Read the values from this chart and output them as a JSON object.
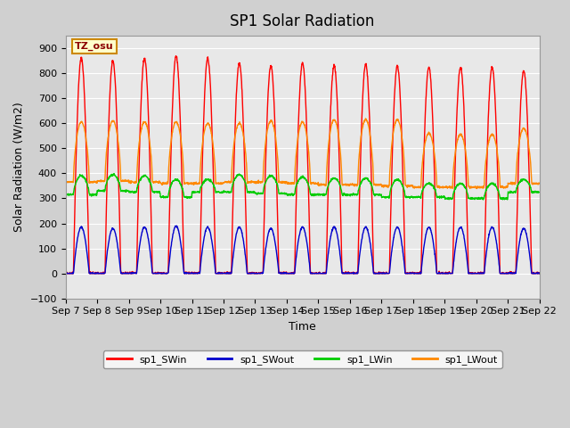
{
  "title": "SP1 Solar Radiation",
  "xlabel": "Time",
  "ylabel": "Solar Radiation (W/m2)",
  "ylim": [
    -100,
    950
  ],
  "yticks": [
    -100,
    0,
    100,
    200,
    300,
    400,
    500,
    600,
    700,
    800,
    900
  ],
  "x_tick_labels": [
    "Sep 7",
    "Sep 8",
    "Sep 9",
    "Sep 10",
    "Sep 11",
    "Sep 12",
    "Sep 13",
    "Sep 14",
    "Sep 15",
    "Sep 16",
    "Sep 17",
    "Sep 18",
    "Sep 19",
    "Sep 20",
    "Sep 21",
    "Sep 22"
  ],
  "colors": {
    "sp1_SWin": "#ff0000",
    "sp1_SWout": "#0000cc",
    "sp1_LWin": "#00cc00",
    "sp1_LWout": "#ff8800"
  },
  "tz_label": "TZ_osu",
  "n_days": 15,
  "points_per_day": 144,
  "SWin_peaks": [
    860,
    850,
    860,
    870,
    860,
    840,
    830,
    840,
    830,
    835,
    830,
    825,
    825,
    825,
    810
  ],
  "SWout_peaks": [
    185,
    180,
    185,
    190,
    185,
    185,
    180,
    185,
    185,
    185,
    185,
    185,
    185,
    185,
    180
  ],
  "LWin_base": [
    315,
    330,
    325,
    305,
    325,
    325,
    320,
    315,
    315,
    315,
    305,
    305,
    300,
    300,
    325
  ],
  "LWin_peak": [
    390,
    395,
    390,
    375,
    375,
    395,
    390,
    385,
    380,
    380,
    375,
    360,
    360,
    360,
    375
  ],
  "LWout_base": [
    365,
    370,
    365,
    360,
    360,
    365,
    365,
    360,
    355,
    355,
    350,
    345,
    345,
    345,
    360
  ],
  "LWout_peak": [
    605,
    610,
    605,
    605,
    600,
    600,
    610,
    605,
    615,
    615,
    615,
    560,
    555,
    555,
    580
  ]
}
